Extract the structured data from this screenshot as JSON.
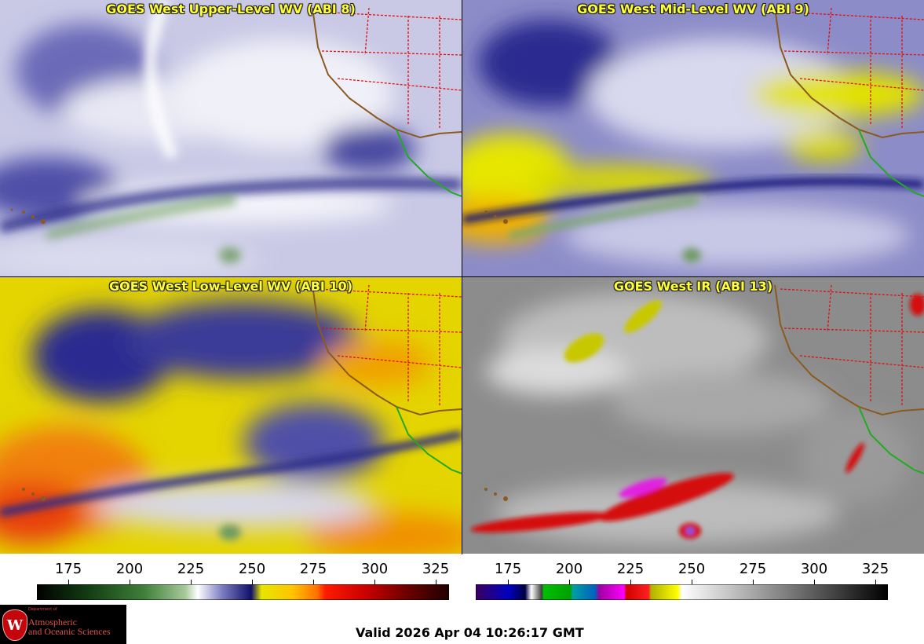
{
  "panels": [
    {
      "id": "p1",
      "title": "GOES West Upper-Level WV (ABI 8)"
    },
    {
      "id": "p2",
      "title": "GOES West Mid-Level WV (ABI 9)"
    },
    {
      "id": "p3",
      "title": "GOES West Low-Level WV (ABI 10)"
    },
    {
      "id": "p4",
      "title": "GOES West IR (ABI 13)"
    }
  ],
  "colorbars": {
    "left": {
      "ticks": [
        "175",
        "200",
        "225",
        "250",
        "275",
        "300",
        "325"
      ]
    },
    "right": {
      "ticks": [
        "175",
        "200",
        "225",
        "250",
        "275",
        "300",
        "325"
      ]
    }
  },
  "logo": {
    "seal_letter": "W",
    "dept_text": "Department of",
    "line1": "Atmospheric",
    "line2": "and Oceanic Sciences"
  },
  "footer": {
    "valid_text": "Valid 2026 Apr 04 10:26:17 GMT"
  }
}
